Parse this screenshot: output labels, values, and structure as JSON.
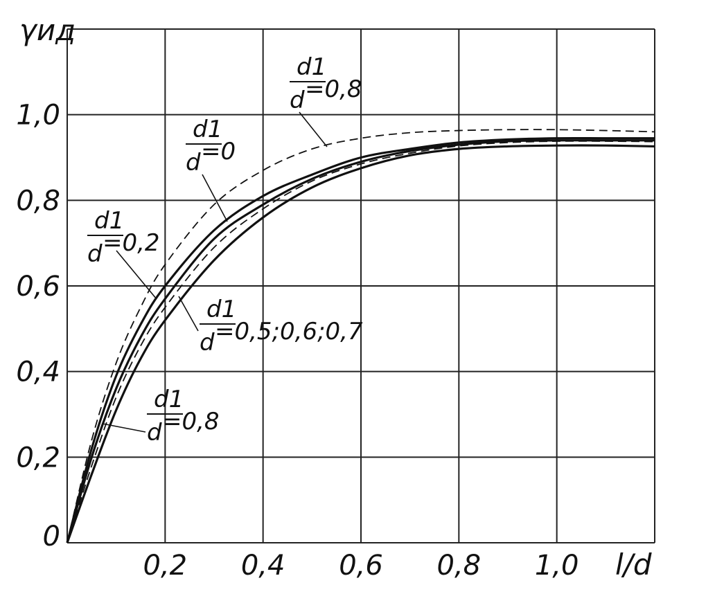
{
  "chart_data": {
    "type": "line",
    "title": "",
    "xlabel": "l/d",
    "ylabel": "γид",
    "xlim": [
      0,
      1.2
    ],
    "ylim": [
      0,
      1.2
    ],
    "grid": true,
    "x_ticks": [
      {
        "value": 0.2,
        "label": "0,2"
      },
      {
        "value": 0.4,
        "label": "0,4"
      },
      {
        "value": 0.6,
        "label": "0,6"
      },
      {
        "value": 0.8,
        "label": "0,8"
      },
      {
        "value": 1.0,
        "label": "1,0"
      }
    ],
    "y_ticks": [
      {
        "value": 0,
        "label": "0"
      },
      {
        "value": 0.2,
        "label": "0,2"
      },
      {
        "value": 0.4,
        "label": "0,4"
      },
      {
        "value": 0.6,
        "label": "0,6"
      },
      {
        "value": 0.8,
        "label": "0,8"
      },
      {
        "value": 1.0,
        "label": "1,0"
      }
    ],
    "series": [
      {
        "style": "dashed",
        "x": [
          0,
          0.05,
          0.1,
          0.15,
          0.2,
          0.3,
          0.4,
          0.5,
          0.6,
          0.7,
          0.8,
          0.9,
          1.0,
          1.1,
          1.2
        ],
        "y": [
          0,
          0.24,
          0.42,
          0.55,
          0.65,
          0.79,
          0.87,
          0.92,
          0.945,
          0.958,
          0.963,
          0.965,
          0.965,
          0.963,
          0.96
        ]
      },
      {
        "style": "solid",
        "x": [
          0,
          0.05,
          0.1,
          0.15,
          0.2,
          0.3,
          0.4,
          0.5,
          0.6,
          0.7,
          0.8,
          0.9,
          1.0,
          1.1,
          1.2
        ],
        "y": [
          0,
          0.22,
          0.39,
          0.51,
          0.6,
          0.73,
          0.81,
          0.86,
          0.9,
          0.92,
          0.935,
          0.942,
          0.945,
          0.945,
          0.945
        ]
      },
      {
        "style": "solid",
        "x": [
          0,
          0.05,
          0.1,
          0.15,
          0.2,
          0.3,
          0.4,
          0.5,
          0.6,
          0.7,
          0.8,
          0.9,
          1.0,
          1.1,
          1.2
        ],
        "y": [
          0,
          0.2,
          0.36,
          0.48,
          0.57,
          0.71,
          0.79,
          0.85,
          0.89,
          0.915,
          0.93,
          0.938,
          0.94,
          0.94,
          0.94
        ]
      },
      {
        "style": "dashed",
        "x": [
          0,
          0.05,
          0.1,
          0.15,
          0.2,
          0.3,
          0.4,
          0.5,
          0.6,
          0.7,
          0.8,
          0.9,
          1.0,
          1.1,
          1.2
        ],
        "y": [
          0,
          0.18,
          0.34,
          0.46,
          0.55,
          0.69,
          0.78,
          0.845,
          0.885,
          0.91,
          0.927,
          0.935,
          0.938,
          0.938,
          0.937
        ]
      },
      {
        "style": "solid",
        "x": [
          0,
          0.05,
          0.1,
          0.15,
          0.2,
          0.3,
          0.4,
          0.5,
          0.6,
          0.7,
          0.8,
          0.9,
          1.0,
          1.1,
          1.2
        ],
        "y": [
          0,
          0.16,
          0.31,
          0.43,
          0.52,
          0.66,
          0.76,
          0.83,
          0.875,
          0.905,
          0.92,
          0.926,
          0.928,
          0.928,
          0.926
        ]
      }
    ],
    "annotations": [
      {
        "num": "d1",
        "den": "d",
        "value": "=0,8"
      },
      {
        "num": "d1",
        "den": "d",
        "value": "=0"
      },
      {
        "num": "d1",
        "den": "d",
        "value": "=0,2"
      },
      {
        "num": "d1",
        "den": "d",
        "value": "=0,5;0,6;0,7"
      },
      {
        "num": "d1",
        "den": "d",
        "value": "=0,8"
      }
    ]
  }
}
